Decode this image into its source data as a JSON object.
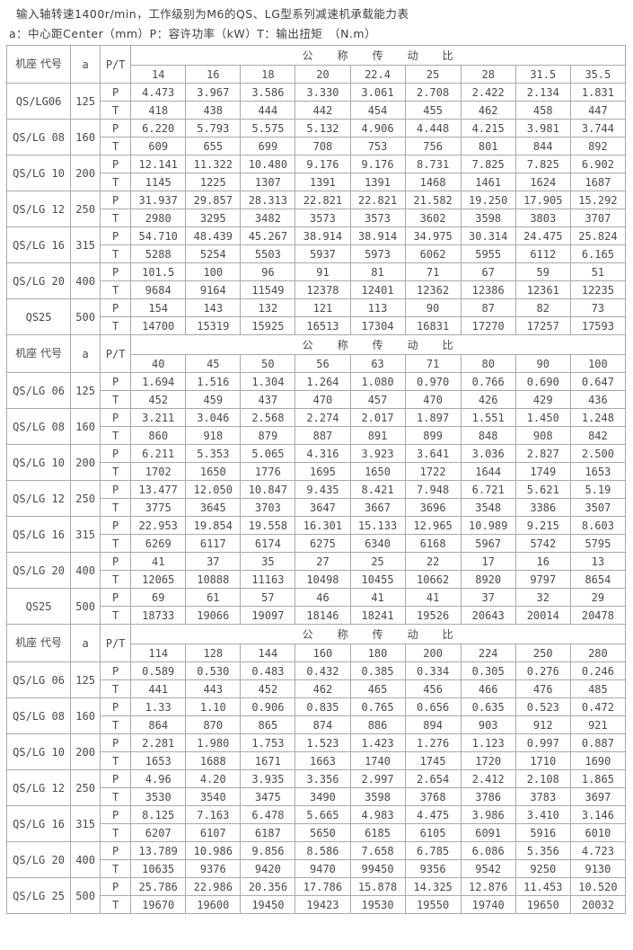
{
  "title_line1": "输入轴转速1400r/min，工作级别为M6的QS、LG型系列减速机承载能力表",
  "title_line2": "a：中心距Center（mm）P：容许功率（kW）T：输出扭矩　（N.m）",
  "colors": {
    "text": "#4a4a4a",
    "border": "#a9a9a9",
    "background": "#ffffff"
  },
  "table": {
    "col_headers": {
      "frame_code": "机座\n代号",
      "center_distance": "a",
      "pt": "P/T",
      "ratio_title": "公　　称　　传　　动　　比"
    },
    "row_labels": {
      "power": "P",
      "torque": "T"
    },
    "sections": [
      {
        "ratios": [
          "14",
          "16",
          "18",
          "20",
          "22.4",
          "25",
          "28",
          "31.5",
          "35.5"
        ],
        "rows": [
          {
            "model": "QS/LG06",
            "a": "125",
            "P": [
              "4.473",
              "3.967",
              "3.586",
              "3.330",
              "3.061",
              "2.708",
              "2.422",
              "2.134",
              "1.831"
            ],
            "T": [
              "418",
              "438",
              "444",
              "442",
              "454",
              "455",
              "462",
              "458",
              "447"
            ]
          },
          {
            "model": "QS/LG 08",
            "a": "160",
            "P": [
              "6.220",
              "5.793",
              "5.575",
              "5.132",
              "4.906",
              "4.448",
              "4.215",
              "3.981",
              "3.744"
            ],
            "T": [
              "609",
              "655",
              "699",
              "708",
              "753",
              "756",
              "801",
              "844",
              "892"
            ]
          },
          {
            "model": "QS/LG 10",
            "a": "200",
            "P": [
              "12.141",
              "11.322",
              "10.480",
              "9.176",
              "9.176",
              "8.731",
              "7.825",
              "7.825",
              "6.902"
            ],
            "T": [
              "1145",
              "1225",
              "1307",
              "1391",
              "1391",
              "1468",
              "1461",
              "1624",
              "1687"
            ]
          },
          {
            "model": "QS/LG 12",
            "a": "250",
            "P": [
              "31.937",
              "29.857",
              "28.313",
              "22.821",
              "22.821",
              "21.582",
              "19.250",
              "17.905",
              "15.292"
            ],
            "T": [
              "2980",
              "3295",
              "3482",
              "3573",
              "3573",
              "3602",
              "3598",
              "3803",
              "3707"
            ]
          },
          {
            "model": "QS/LG 16",
            "a": "315",
            "P": [
              "54.710",
              "48.439",
              "45.267",
              "38.914",
              "38.914",
              "34.975",
              "30.314",
              "24.475",
              "25.824"
            ],
            "T": [
              "5288",
              "5254",
              "5503",
              "5937",
              "5973",
              "6062",
              "5955",
              "6112",
              "6.165"
            ]
          },
          {
            "model": "QS/LG 20",
            "a": "400",
            "P": [
              "101.5",
              "100",
              "96",
              "91",
              "81",
              "71",
              "67",
              "59",
              "51"
            ],
            "T": [
              "9684",
              "9164",
              "11549",
              "12378",
              "12401",
              "12362",
              "12386",
              "12361",
              "12235"
            ]
          },
          {
            "model": "QS25",
            "a": "500",
            "P": [
              "154",
              "143",
              "132",
              "121",
              "113",
              "90",
              "87",
              "82",
              "73"
            ],
            "T": [
              "14700",
              "15319",
              "15925",
              "16513",
              "17304",
              "16831",
              "17270",
              "17257",
              "17593"
            ]
          }
        ]
      },
      {
        "ratios": [
          "40",
          "45",
          "50",
          "56",
          "63",
          "71",
          "80",
          "90",
          "100"
        ],
        "rows": [
          {
            "model": "QS/LG 06",
            "a": "125",
            "P": [
              "1.694",
              "1.516",
              "1.304",
              "1.264",
              "1.080",
              "0.970",
              "0.766",
              "0.690",
              "0.647"
            ],
            "T": [
              "452",
              "459",
              "437",
              "470",
              "457",
              "470",
              "426",
              "429",
              "436"
            ]
          },
          {
            "model": "QS/LG 08",
            "a": "160",
            "P": [
              "3.211",
              "3.046",
              "2.568",
              "2.274",
              "2.017",
              "1.897",
              "1.551",
              "1.450",
              "1.248"
            ],
            "T": [
              "860",
              "918",
              "879",
              "887",
              "891",
              "899",
              "848",
              "908",
              "842"
            ]
          },
          {
            "model": "QS/LG 10",
            "a": "200",
            "P": [
              "6.211",
              "5.353",
              "5.065",
              "4.316",
              "3.923",
              "3.641",
              "3.036",
              "2.827",
              "2.500"
            ],
            "T": [
              "1702",
              "1650",
              "1776",
              "1695",
              "1650",
              "1722",
              "1644",
              "1749",
              "1653"
            ]
          },
          {
            "model": "QS/LG 12",
            "a": "250",
            "P": [
              "13.477",
              "12.050",
              "10.847",
              "9.435",
              "8.421",
              "7.948",
              "6.721",
              "5.621",
              "5.19"
            ],
            "T": [
              "3775",
              "3645",
              "3703",
              "3647",
              "3667",
              "3696",
              "3548",
              "3386",
              "3507"
            ]
          },
          {
            "model": "QS/LG 16",
            "a": "315",
            "P": [
              "22.953",
              "19.854",
              "19.558",
              "16.301",
              "15.133",
              "12.965",
              "10.989",
              "9.215",
              "8.603"
            ],
            "T": [
              "6269",
              "6117",
              "6174",
              "6275",
              "6340",
              "6168",
              "5967",
              "5742",
              "5795"
            ]
          },
          {
            "model": "QS/LG 20",
            "a": "400",
            "P": [
              "41",
              "37",
              "35",
              "27",
              "25",
              "22",
              "17",
              "16",
              "13"
            ],
            "T": [
              "12065",
              "10888",
              "11163",
              "10498",
              "10455",
              "10662",
              "8920",
              "9797",
              "8654"
            ]
          },
          {
            "model": "QS25",
            "a": "500",
            "P": [
              "69",
              "61",
              "57",
              "46",
              "41",
              "41",
              "37",
              "32",
              "29"
            ],
            "T": [
              "18733",
              "19066",
              "19097",
              "18146",
              "18241",
              "19526",
              "20643",
              "20014",
              "20478"
            ]
          }
        ]
      },
      {
        "ratios": [
          "114",
          "128",
          "144",
          "160",
          "180",
          "200",
          "224",
          "250",
          "280"
        ],
        "rows": [
          {
            "model": "QS/LG 06",
            "a": "125",
            "P": [
              "0.589",
              "0.530",
              "0.483",
              "0.432",
              "0.385",
              "0.334",
              "0.305",
              "0.276",
              "0.246"
            ],
            "T": [
              "441",
              "443",
              "452",
              "462",
              "465",
              "456",
              "466",
              "476",
              "485"
            ]
          },
          {
            "model": "QS/LG 08",
            "a": "160",
            "P": [
              "1.33",
              "1.10",
              "0.906",
              "0.835",
              "0.765",
              "0.656",
              "0.635",
              "0.523",
              "0.472"
            ],
            "T": [
              "864",
              "870",
              "865",
              "874",
              "886",
              "894",
              "903",
              "912",
              "921"
            ]
          },
          {
            "model": "QS/LG 10",
            "a": "200",
            "P": [
              "2.281",
              "1.980",
              "1.753",
              "1.523",
              "1.423",
              "1.276",
              "1.123",
              "0.997",
              "0.887"
            ],
            "T": [
              "1653",
              "1688",
              "1671",
              "1663",
              "1740",
              "1745",
              "1720",
              "1710",
              "1690"
            ]
          },
          {
            "model": "QS/LG 12",
            "a": "250",
            "P": [
              "4.96",
              "4.20",
              "3.935",
              "3.356",
              "2.997",
              "2.654",
              "2.412",
              "2.108",
              "1.865"
            ],
            "T": [
              "3530",
              "3540",
              "3475",
              "3490",
              "3598",
              "3768",
              "3786",
              "3783",
              "3697"
            ]
          },
          {
            "model": "QS/LG 16",
            "a": "315",
            "P": [
              "8.125",
              "7.163",
              "6.478",
              "5.665",
              "4.983",
              "4.475",
              "3.986",
              "3.410",
              "3.146"
            ],
            "T": [
              "6207",
              "6107",
              "6187",
              "5650",
              "6185",
              "6105",
              "6091",
              "5916",
              "6010"
            ]
          },
          {
            "model": "QS/LG 20",
            "a": "400",
            "P": [
              "13.789",
              "10.986",
              "9.856",
              "8.586",
              "7.658",
              "6.785",
              "6.086",
              "5.356",
              "4.723"
            ],
            "T": [
              "10635",
              "9376",
              "9420",
              "9470",
              "99450",
              "9356",
              "9542",
              "9250",
              "9130"
            ]
          },
          {
            "model": "QS/LG 25",
            "a": "500",
            "P": [
              "25.786",
              "22.986",
              "20.356",
              "17.786",
              "15.878",
              "14.325",
              "12.876",
              "11.453",
              "10.520"
            ],
            "T": [
              "19670",
              "19600",
              "19450",
              "19423",
              "19530",
              "19550",
              "19740",
              "19650",
              "20032"
            ]
          }
        ]
      }
    ]
  }
}
